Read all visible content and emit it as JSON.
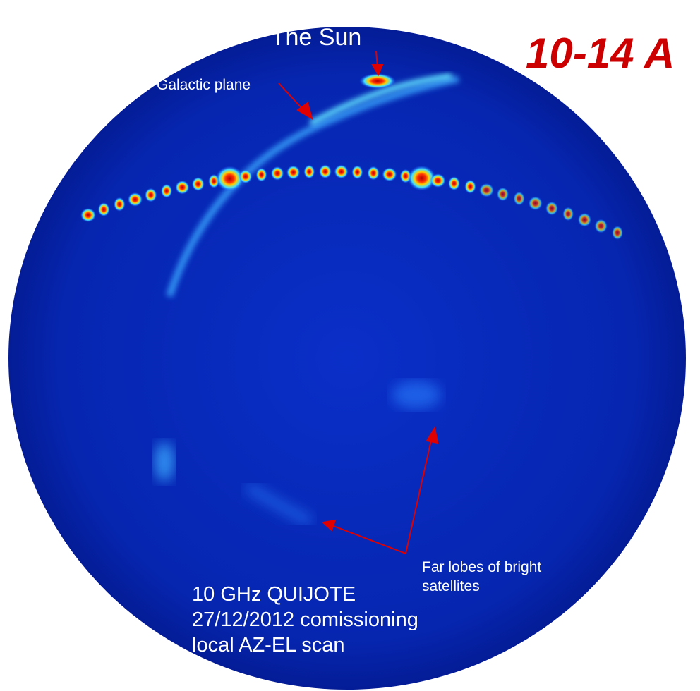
{
  "annotations": {
    "sun": "The Sun",
    "band": "10-14 A",
    "galactic_plane": "Galactic plane",
    "far_lobes": [
      "Far lobes of bright",
      "satellites"
    ],
    "caption": [
      "10 GHz QUIJOTE",
      "27/12/2012 comissioning",
      "local AZ-EL scan"
    ]
  }
}
